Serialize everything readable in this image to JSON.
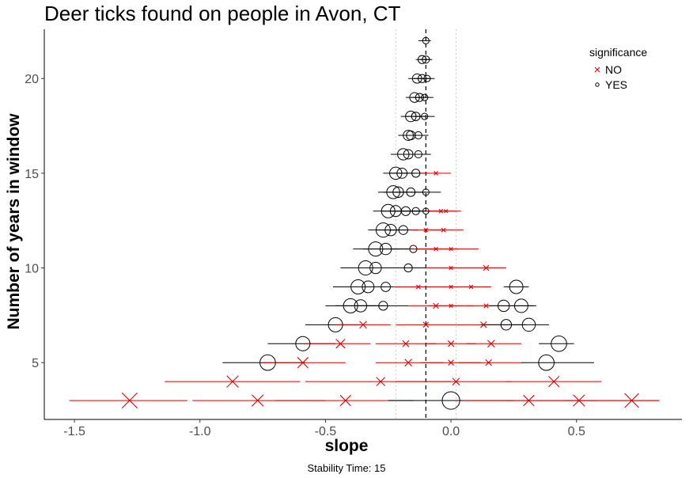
{
  "chart_data": {
    "type": "scatter",
    "title": "Deer ticks found on people in Avon, CT",
    "xlabel": "slope",
    "ylabel": "Number of years in window",
    "caption": "Stability Time: 15",
    "xlim": [
      -1.62,
      0.92
    ],
    "ylim": [
      2.0,
      22.6
    ],
    "xticks": [
      -1.5,
      -1.0,
      -0.5,
      0.0,
      0.5
    ],
    "xtick_labels": [
      "-1.5",
      "-1.0",
      "-0.5",
      "0.0",
      "0.5"
    ],
    "yticks": [
      5,
      10,
      15,
      20
    ],
    "ytick_labels": [
      "5",
      "10",
      "15",
      "20"
    ],
    "reference_lines": {
      "dashed": -0.1,
      "dotted": [
        -0.22,
        0.02
      ]
    },
    "legend": {
      "title": "significance",
      "position": "top-right",
      "entries": [
        {
          "label": "NO",
          "shape": "cross",
          "color": "#dd0000"
        },
        {
          "label": "YES",
          "shape": "circle",
          "color": "#000000"
        }
      ]
    },
    "grid": false,
    "points": [
      {
        "years": 22,
        "slope": -0.1,
        "lo": -0.13,
        "hi": -0.08,
        "sig": "YES",
        "size": 0.08
      },
      {
        "years": 21,
        "slope": -0.115,
        "lo": -0.14,
        "hi": -0.085,
        "sig": "YES",
        "size": 0.12
      },
      {
        "years": 21,
        "slope": -0.1,
        "lo": -0.125,
        "hi": -0.075,
        "sig": "YES",
        "size": 0.1
      },
      {
        "years": 20,
        "slope": -0.135,
        "lo": -0.17,
        "hi": -0.1,
        "sig": "YES",
        "size": 0.15
      },
      {
        "years": 20,
        "slope": -0.115,
        "lo": -0.15,
        "hi": -0.08,
        "sig": "YES",
        "size": 0.12
      },
      {
        "years": 20,
        "slope": -0.095,
        "lo": -0.125,
        "hi": -0.065,
        "sig": "YES",
        "size": 0.08
      },
      {
        "years": 19,
        "slope": -0.145,
        "lo": -0.18,
        "hi": -0.11,
        "sig": "YES",
        "size": 0.16
      },
      {
        "years": 19,
        "slope": -0.125,
        "lo": -0.16,
        "hi": -0.09,
        "sig": "YES",
        "size": 0.12
      },
      {
        "years": 19,
        "slope": -0.105,
        "lo": -0.14,
        "hi": -0.07,
        "sig": "YES",
        "size": 0.08
      },
      {
        "years": 18,
        "slope": -0.16,
        "lo": -0.2,
        "hi": -0.12,
        "sig": "YES",
        "size": 0.18
      },
      {
        "years": 18,
        "slope": -0.14,
        "lo": -0.18,
        "hi": -0.1,
        "sig": "YES",
        "size": 0.13
      },
      {
        "years": 18,
        "slope": -0.105,
        "lo": -0.145,
        "hi": -0.065,
        "sig": "YES",
        "size": 0.08
      },
      {
        "years": 17,
        "slope": -0.17,
        "lo": -0.21,
        "hi": -0.13,
        "sig": "YES",
        "size": 0.17
      },
      {
        "years": 17,
        "slope": -0.16,
        "lo": -0.2,
        "hi": -0.12,
        "sig": "YES",
        "size": 0.14
      },
      {
        "years": 17,
        "slope": -0.13,
        "lo": -0.17,
        "hi": -0.09,
        "sig": "YES",
        "size": 0.1
      },
      {
        "years": 16,
        "slope": -0.19,
        "lo": -0.24,
        "hi": -0.14,
        "sig": "YES",
        "size": 0.2
      },
      {
        "years": 16,
        "slope": -0.17,
        "lo": -0.22,
        "hi": -0.12,
        "sig": "YES",
        "size": 0.15
      },
      {
        "years": 16,
        "slope": -0.13,
        "lo": -0.18,
        "hi": -0.08,
        "sig": "YES",
        "size": 0.1
      },
      {
        "years": 15,
        "slope": -0.22,
        "lo": -0.27,
        "hi": -0.17,
        "sig": "YES",
        "size": 0.22
      },
      {
        "years": 15,
        "slope": -0.195,
        "lo": -0.245,
        "hi": -0.145,
        "sig": "YES",
        "size": 0.17
      },
      {
        "years": 15,
        "slope": -0.14,
        "lo": -0.19,
        "hi": -0.09,
        "sig": "YES",
        "size": 0.12
      },
      {
        "years": 15,
        "slope": -0.06,
        "lo": -0.12,
        "hi": 0.0,
        "sig": "NO",
        "size": 0.05
      },
      {
        "years": 14,
        "slope": -0.23,
        "lo": -0.29,
        "hi": -0.17,
        "sig": "YES",
        "size": 0.24
      },
      {
        "years": 14,
        "slope": -0.21,
        "lo": -0.27,
        "hi": -0.15,
        "sig": "YES",
        "size": 0.18
      },
      {
        "years": 14,
        "slope": -0.16,
        "lo": -0.22,
        "hi": -0.1,
        "sig": "YES",
        "size": 0.13
      },
      {
        "years": 14,
        "slope": -0.1,
        "lo": -0.16,
        "hi": -0.04,
        "sig": "YES",
        "size": 0.08
      },
      {
        "years": 13,
        "slope": -0.25,
        "lo": -0.31,
        "hi": -0.19,
        "sig": "YES",
        "size": 0.25
      },
      {
        "years": 13,
        "slope": -0.22,
        "lo": -0.28,
        "hi": -0.16,
        "sig": "YES",
        "size": 0.19
      },
      {
        "years": 13,
        "slope": -0.18,
        "lo": -0.24,
        "hi": -0.12,
        "sig": "YES",
        "size": 0.14
      },
      {
        "years": 13,
        "slope": -0.14,
        "lo": -0.2,
        "hi": -0.08,
        "sig": "YES",
        "size": 0.1
      },
      {
        "years": 13,
        "slope": -0.1,
        "lo": -0.16,
        "hi": -0.04,
        "sig": "YES",
        "size": 0.07
      },
      {
        "years": 13,
        "slope": -0.04,
        "lo": -0.1,
        "hi": 0.02,
        "sig": "NO",
        "size": 0.05
      },
      {
        "years": 13,
        "slope": -0.02,
        "lo": -0.08,
        "hi": 0.04,
        "sig": "NO",
        "size": 0.04
      },
      {
        "years": 12,
        "slope": -0.27,
        "lo": -0.33,
        "hi": -0.21,
        "sig": "YES",
        "size": 0.27
      },
      {
        "years": 12,
        "slope": -0.24,
        "lo": -0.3,
        "hi": -0.18,
        "sig": "YES",
        "size": 0.2
      },
      {
        "years": 12,
        "slope": -0.19,
        "lo": -0.25,
        "hi": -0.13,
        "sig": "YES",
        "size": 0.14
      },
      {
        "years": 12,
        "slope": -0.1,
        "lo": -0.16,
        "hi": -0.04,
        "sig": "NO",
        "size": 0.05
      },
      {
        "years": 12,
        "slope": -0.03,
        "lo": -0.09,
        "hi": 0.05,
        "sig": "NO",
        "size": 0.05
      },
      {
        "years": 11,
        "slope": -0.3,
        "lo": -0.39,
        "hi": -0.21,
        "sig": "YES",
        "size": 0.27
      },
      {
        "years": 11,
        "slope": -0.26,
        "lo": -0.35,
        "hi": -0.17,
        "sig": "YES",
        "size": 0.2
      },
      {
        "years": 11,
        "slope": -0.15,
        "lo": -0.24,
        "hi": -0.06,
        "sig": "YES",
        "size": 0.1
      },
      {
        "years": 11,
        "slope": -0.06,
        "lo": -0.15,
        "hi": 0.03,
        "sig": "NO",
        "size": 0.05
      },
      {
        "years": 11,
        "slope": 0.0,
        "lo": -0.1,
        "hi": 0.11,
        "sig": "NO",
        "size": 0.04
      },
      {
        "years": 10,
        "slope": -0.34,
        "lo": -0.44,
        "hi": -0.24,
        "sig": "YES",
        "size": 0.27
      },
      {
        "years": 10,
        "slope": -0.3,
        "lo": -0.4,
        "hi": -0.2,
        "sig": "YES",
        "size": 0.2
      },
      {
        "years": 10,
        "slope": -0.17,
        "lo": -0.27,
        "hi": -0.07,
        "sig": "YES",
        "size": 0.12
      },
      {
        "years": 10,
        "slope": 0.0,
        "lo": -0.1,
        "hi": 0.12,
        "sig": "NO",
        "size": 0.04
      },
      {
        "years": 10,
        "slope": 0.14,
        "lo": 0.06,
        "hi": 0.22,
        "sig": "NO",
        "size": 0.1
      },
      {
        "years": 9,
        "slope": -0.37,
        "lo": -0.47,
        "hi": -0.27,
        "sig": "YES",
        "size": 0.27
      },
      {
        "years": 9,
        "slope": -0.33,
        "lo": -0.43,
        "hi": -0.23,
        "sig": "YES",
        "size": 0.21
      },
      {
        "years": 9,
        "slope": -0.26,
        "lo": -0.36,
        "hi": -0.16,
        "sig": "YES",
        "size": 0.15
      },
      {
        "years": 9,
        "slope": -0.13,
        "lo": -0.23,
        "hi": -0.03,
        "sig": "NO",
        "size": 0.05
      },
      {
        "years": 9,
        "slope": 0.0,
        "lo": -0.1,
        "hi": 0.1,
        "sig": "NO",
        "size": 0.04
      },
      {
        "years": 9,
        "slope": 0.08,
        "lo": 0.0,
        "hi": 0.16,
        "sig": "NO",
        "size": 0.05
      },
      {
        "years": 9,
        "slope": 0.26,
        "lo": 0.21,
        "hi": 0.31,
        "sig": "YES",
        "size": 0.25
      },
      {
        "years": 8,
        "slope": -0.4,
        "lo": -0.5,
        "hi": -0.3,
        "sig": "YES",
        "size": 0.27
      },
      {
        "years": 8,
        "slope": -0.36,
        "lo": -0.46,
        "hi": -0.26,
        "sig": "YES",
        "size": 0.22
      },
      {
        "years": 8,
        "slope": -0.27,
        "lo": -0.37,
        "hi": -0.17,
        "sig": "YES",
        "size": 0.14
      },
      {
        "years": 8,
        "slope": -0.06,
        "lo": -0.17,
        "hi": 0.05,
        "sig": "NO",
        "size": 0.1
      },
      {
        "years": 8,
        "slope": 0.0,
        "lo": -0.09,
        "hi": 0.09,
        "sig": "NO",
        "size": 0.04
      },
      {
        "years": 8,
        "slope": 0.14,
        "lo": 0.06,
        "hi": 0.22,
        "sig": "NO",
        "size": 0.06
      },
      {
        "years": 8,
        "slope": 0.21,
        "lo": 0.15,
        "hi": 0.33,
        "sig": "YES",
        "size": 0.2
      },
      {
        "years": 8,
        "slope": 0.28,
        "lo": 0.22,
        "hi": 0.34,
        "sig": "YES",
        "size": 0.25
      },
      {
        "years": 7,
        "slope": -0.46,
        "lo": -0.58,
        "hi": -0.36,
        "sig": "YES",
        "size": 0.27
      },
      {
        "years": 7,
        "slope": -0.35,
        "lo": -0.46,
        "hi": -0.24,
        "sig": "NO",
        "size": 0.15
      },
      {
        "years": 7,
        "slope": -0.1,
        "lo": -0.22,
        "hi": 0.02,
        "sig": "NO",
        "size": 0.1
      },
      {
        "years": 7,
        "slope": 0.13,
        "lo": 0.02,
        "hi": 0.24,
        "sig": "NO",
        "size": 0.12
      },
      {
        "years": 7,
        "slope": 0.22,
        "lo": 0.12,
        "hi": 0.3,
        "sig": "YES",
        "size": 0.18
      },
      {
        "years": 7,
        "slope": 0.31,
        "lo": 0.24,
        "hi": 0.39,
        "sig": "YES",
        "size": 0.24
      },
      {
        "years": 6,
        "slope": -0.59,
        "lo": -0.73,
        "hi": -0.46,
        "sig": "YES",
        "size": 0.27
      },
      {
        "years": 6,
        "slope": -0.44,
        "lo": -0.58,
        "hi": -0.32,
        "sig": "NO",
        "size": 0.22
      },
      {
        "years": 6,
        "slope": -0.18,
        "lo": -0.3,
        "hi": -0.06,
        "sig": "NO",
        "size": 0.13
      },
      {
        "years": 6,
        "slope": 0.0,
        "lo": -0.1,
        "hi": 0.1,
        "sig": "NO",
        "size": 0.12
      },
      {
        "years": 6,
        "slope": 0.16,
        "lo": 0.06,
        "hi": 0.28,
        "sig": "NO",
        "size": 0.15
      },
      {
        "years": 6,
        "slope": 0.43,
        "lo": 0.35,
        "hi": 0.49,
        "sig": "YES",
        "size": 0.3
      },
      {
        "years": 5,
        "slope": -0.73,
        "lo": -0.91,
        "hi": -0.58,
        "sig": "YES",
        "size": 0.3
      },
      {
        "years": 5,
        "slope": -0.59,
        "lo": -0.75,
        "hi": -0.42,
        "sig": "NO",
        "size": 0.27
      },
      {
        "years": 5,
        "slope": -0.17,
        "lo": -0.3,
        "hi": -0.03,
        "sig": "NO",
        "size": 0.15
      },
      {
        "years": 5,
        "slope": 0.0,
        "lo": -0.12,
        "hi": 0.12,
        "sig": "NO",
        "size": 0.1
      },
      {
        "years": 5,
        "slope": 0.15,
        "lo": 0.03,
        "hi": 0.28,
        "sig": "NO",
        "size": 0.12
      },
      {
        "years": 5,
        "slope": 0.38,
        "lo": 0.28,
        "hi": 0.57,
        "sig": "YES",
        "size": 0.3
      },
      {
        "years": 4,
        "slope": -0.87,
        "lo": -1.14,
        "hi": -0.6,
        "sig": "NO",
        "size": 0.3
      },
      {
        "years": 4,
        "slope": -0.28,
        "lo": -0.58,
        "hi": 0.0,
        "sig": "NO",
        "size": 0.2
      },
      {
        "years": 4,
        "slope": 0.02,
        "lo": -0.22,
        "hi": 0.24,
        "sig": "NO",
        "size": 0.15
      },
      {
        "years": 4,
        "slope": 0.41,
        "lo": 0.22,
        "hi": 0.6,
        "sig": "NO",
        "size": 0.27
      },
      {
        "years": 3,
        "slope": -1.28,
        "lo": -1.52,
        "hi": -1.05,
        "sig": "NO",
        "size": 0.42
      },
      {
        "years": 3,
        "slope": -0.77,
        "lo": -1.03,
        "hi": -0.5,
        "sig": "NO",
        "size": 0.3
      },
      {
        "years": 3,
        "slope": -0.42,
        "lo": -0.7,
        "hi": -0.15,
        "sig": "NO",
        "size": 0.27
      },
      {
        "years": 3,
        "slope": 0.0,
        "lo": -0.25,
        "hi": 0.25,
        "sig": "YES",
        "size": 0.35
      },
      {
        "years": 3,
        "slope": 0.31,
        "lo": 0.05,
        "hi": 0.58,
        "sig": "NO",
        "size": 0.27
      },
      {
        "years": 3,
        "slope": 0.51,
        "lo": 0.22,
        "hi": 0.83,
        "sig": "NO",
        "size": 0.3
      },
      {
        "years": 3,
        "slope": 0.72,
        "lo": 0.45,
        "hi": 0.83,
        "sig": "NO",
        "size": 0.38
      }
    ]
  }
}
